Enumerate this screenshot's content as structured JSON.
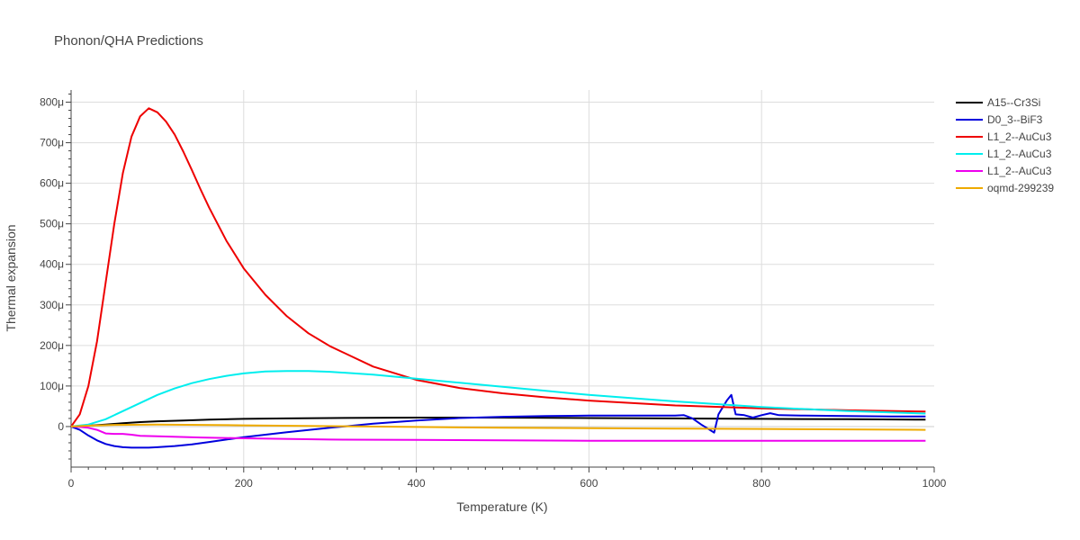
{
  "chart_data": {
    "type": "line",
    "title": "Phonon/QHA Predictions",
    "xlabel": "Temperature (K)",
    "ylabel": "Thermal expansion",
    "xlim": [
      0,
      1000
    ],
    "ylim": [
      -100,
      830
    ],
    "x_ticks": [
      0,
      200,
      400,
      600,
      800,
      1000
    ],
    "x_tick_labels": [
      "0",
      "200",
      "400",
      "600",
      "800",
      "1000"
    ],
    "y_ticks": [
      0,
      100,
      200,
      300,
      400,
      500,
      600,
      700,
      800
    ],
    "y_tick_labels": [
      "0",
      "100μ",
      "200μ",
      "300μ",
      "400μ",
      "500μ",
      "600μ",
      "700μ",
      "800μ"
    ],
    "grid": true,
    "legend_position": "top-right",
    "series": [
      {
        "name": "A15--Cr3Si",
        "color": "#000000",
        "x": [
          0,
          20,
          40,
          60,
          80,
          100,
          130,
          160,
          200,
          250,
          300,
          400,
          500,
          600,
          700,
          800,
          900,
          990
        ],
        "y": [
          0,
          2,
          5,
          8,
          11,
          13,
          15,
          17,
          19,
          20,
          21,
          22,
          22,
          21,
          20,
          19,
          18,
          17
        ]
      },
      {
        "name": "D0_3--BiF3",
        "color": "#0000dd",
        "x": [
          0,
          10,
          20,
          30,
          40,
          50,
          60,
          70,
          80,
          90,
          100,
          120,
          140,
          160,
          180,
          200,
          250,
          300,
          350,
          400,
          450,
          500,
          550,
          600,
          650,
          700,
          710,
          720,
          730,
          740,
          745,
          750,
          760,
          765,
          770,
          780,
          790,
          800,
          810,
          820,
          850,
          900,
          950,
          990
        ],
        "y": [
          0,
          -8,
          -22,
          -34,
          -43,
          -48,
          -51,
          -52,
          -52,
          -52,
          -51,
          -48,
          -44,
          -38,
          -32,
          -26,
          -14,
          -3,
          7,
          15,
          21,
          24,
          26,
          27,
          27,
          27,
          28,
          20,
          5,
          -8,
          -15,
          30,
          65,
          78,
          30,
          28,
          22,
          28,
          33,
          28,
          27,
          26,
          25,
          25
        ]
      },
      {
        "name": "L1_2--AuCu3",
        "color": "#ee0000",
        "x": [
          0,
          10,
          20,
          30,
          40,
          50,
          60,
          70,
          80,
          90,
          100,
          110,
          120,
          130,
          140,
          150,
          160,
          180,
          200,
          225,
          250,
          275,
          300,
          350,
          400,
          450,
          500,
          550,
          600,
          700,
          800,
          900,
          990
        ],
        "y": [
          0,
          30,
          100,
          210,
          355,
          500,
          625,
          715,
          765,
          785,
          775,
          752,
          720,
          678,
          632,
          585,
          540,
          458,
          390,
          325,
          272,
          230,
          198,
          148,
          115,
          95,
          82,
          72,
          64,
          52,
          45,
          40,
          37
        ]
      },
      {
        "name": "L1_2--AuCu3",
        "color": "#00eeee",
        "x": [
          0,
          20,
          40,
          60,
          80,
          100,
          120,
          140,
          160,
          180,
          200,
          225,
          250,
          275,
          300,
          350,
          400,
          450,
          500,
          550,
          600,
          700,
          800,
          900,
          990
        ],
        "y": [
          0,
          5,
          18,
          38,
          58,
          78,
          94,
          107,
          117,
          125,
          131,
          136,
          137,
          137,
          135,
          128,
          118,
          108,
          98,
          88,
          78,
          62,
          48,
          38,
          32
        ]
      },
      {
        "name": "L1_2--AuCu3",
        "color": "#ee00ee",
        "x": [
          0,
          10,
          20,
          30,
          40,
          50,
          60,
          70,
          80,
          100,
          150,
          200,
          300,
          400,
          500,
          600,
          700,
          800,
          900,
          990
        ],
        "y": [
          0,
          -1,
          -3,
          -8,
          -17,
          -18,
          -18,
          -20,
          -23,
          -24,
          -27,
          -29,
          -32,
          -33,
          -34,
          -35,
          -35,
          -35,
          -35,
          -35
        ]
      },
      {
        "name": "oqmd-299239",
        "color": "#eeaa00",
        "x": [
          0,
          20,
          50,
          100,
          150,
          200,
          300,
          400,
          500,
          600,
          700,
          800,
          900,
          990
        ],
        "y": [
          0,
          2,
          4,
          5,
          4,
          3,
          1,
          -1,
          -3,
          -4,
          -5,
          -6,
          -7,
          -8
        ]
      }
    ]
  }
}
